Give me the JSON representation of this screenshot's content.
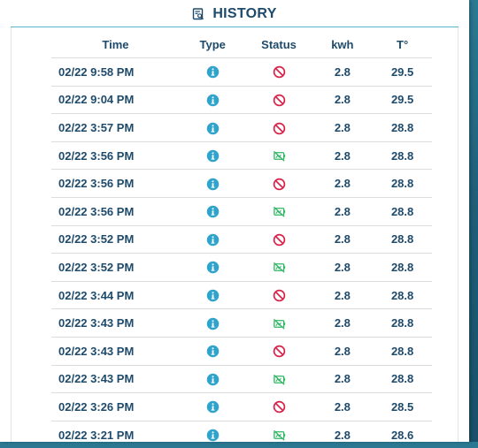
{
  "header": {
    "title": "HISTORY",
    "icon": "receipt-search-icon"
  },
  "columns": {
    "time": "Time",
    "type": "Type",
    "status": "Status",
    "kwh": "kwh",
    "temp": "T°"
  },
  "colors": {
    "primary": "#1e4a6b",
    "info": "#2ea3cc",
    "blocked": "#d9234a",
    "inactive": "#2fb764",
    "accent_rule": "#5ab3c9"
  },
  "rows": [
    {
      "time": "02/22 9:58 PM",
      "type_icon": "info-icon",
      "status_icon": "blocked-icon",
      "kwh": "2.8",
      "temp": "29.5"
    },
    {
      "time": "02/22 9:04 PM",
      "type_icon": "info-icon",
      "status_icon": "blocked-icon",
      "kwh": "2.8",
      "temp": "29.5"
    },
    {
      "time": "02/22 3:57 PM",
      "type_icon": "info-icon",
      "status_icon": "blocked-icon",
      "kwh": "2.8",
      "temp": "28.8"
    },
    {
      "time": "02/22 3:56 PM",
      "type_icon": "info-icon",
      "status_icon": "device-off-icon",
      "kwh": "2.8",
      "temp": "28.8"
    },
    {
      "time": "02/22 3:56 PM",
      "type_icon": "info-icon",
      "status_icon": "blocked-icon",
      "kwh": "2.8",
      "temp": "28.8"
    },
    {
      "time": "02/22 3:56 PM",
      "type_icon": "info-icon",
      "status_icon": "device-off-icon",
      "kwh": "2.8",
      "temp": "28.8"
    },
    {
      "time": "02/22 3:52 PM",
      "type_icon": "info-icon",
      "status_icon": "blocked-icon",
      "kwh": "2.8",
      "temp": "28.8"
    },
    {
      "time": "02/22 3:52 PM",
      "type_icon": "info-icon",
      "status_icon": "device-off-icon",
      "kwh": "2.8",
      "temp": "28.8"
    },
    {
      "time": "02/22 3:44 PM",
      "type_icon": "info-icon",
      "status_icon": "blocked-icon",
      "kwh": "2.8",
      "temp": "28.8"
    },
    {
      "time": "02/22 3:43 PM",
      "type_icon": "info-icon",
      "status_icon": "device-off-icon",
      "kwh": "2.8",
      "temp": "28.8"
    },
    {
      "time": "02/22 3:43 PM",
      "type_icon": "info-icon",
      "status_icon": "blocked-icon",
      "kwh": "2.8",
      "temp": "28.8"
    },
    {
      "time": "02/22 3:43 PM",
      "type_icon": "info-icon",
      "status_icon": "device-off-icon",
      "kwh": "2.8",
      "temp": "28.8"
    },
    {
      "time": "02/22 3:26 PM",
      "type_icon": "info-icon",
      "status_icon": "blocked-icon",
      "kwh": "2.8",
      "temp": "28.5"
    },
    {
      "time": "02/22 3:21 PM",
      "type_icon": "info-icon",
      "status_icon": "device-off-icon",
      "kwh": "2.8",
      "temp": "28.6"
    }
  ]
}
